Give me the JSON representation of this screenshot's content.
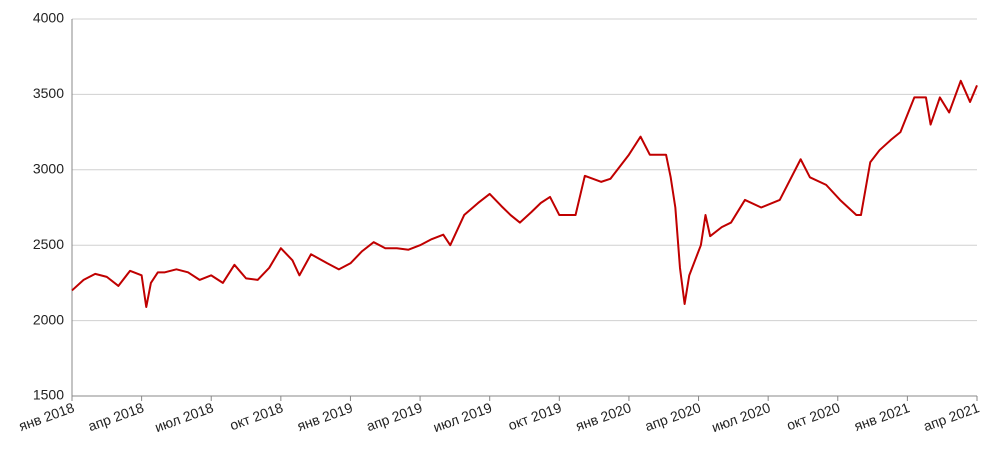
{
  "chart_data": {
    "type": "line",
    "x": [
      0,
      0.5,
      1,
      1.5,
      2,
      2.5,
      3,
      3.2,
      3.4,
      3.7,
      4,
      4.5,
      5,
      5.5,
      6,
      6.5,
      7,
      7.5,
      8,
      8.5,
      9,
      9.5,
      9.8,
      10.3,
      11,
      11.5,
      12,
      12.5,
      13,
      13.5,
      14,
      14.5,
      15,
      15.5,
      16,
      16.3,
      16.9,
      17.5,
      18,
      18.5,
      18.9,
      19.3,
      19.8,
      20.2,
      20.6,
      21,
      21.7,
      22.1,
      22.8,
      23.2,
      24,
      24.5,
      24.9,
      25.6,
      25.8,
      26,
      26.2,
      26.4,
      26.6,
      27.1,
      27.3,
      27.5,
      28,
      28.4,
      29,
      29.7,
      30.5,
      31.4,
      31.8,
      32.5,
      33.1,
      33.8,
      34,
      34.4,
      34.8,
      35.3,
      35.7,
      36.3,
      36.8,
      37,
      37.4,
      37.8,
      38.3,
      38.7,
      39
    ],
    "series": [
      {
        "color": "#c00000",
        "values": [
          2200,
          2270,
          2310,
          2290,
          2230,
          2330,
          2300,
          2090,
          2250,
          2320,
          2320,
          2340,
          2320,
          2270,
          2300,
          2250,
          2370,
          2280,
          2270,
          2350,
          2480,
          2400,
          2300,
          2440,
          2380,
          2340,
          2380,
          2460,
          2520,
          2480,
          2480,
          2470,
          2500,
          2540,
          2570,
          2500,
          2700,
          2780,
          2840,
          2760,
          2700,
          2650,
          2720,
          2780,
          2820,
          2700,
          2700,
          2960,
          2920,
          2940,
          3100,
          3220,
          3100,
          3100,
          2950,
          2750,
          2350,
          2110,
          2300,
          2500,
          2700,
          2560,
          2620,
          2650,
          2800,
          2750,
          2800,
          3070,
          2950,
          2900,
          2800,
          2700,
          2700,
          3050,
          3130,
          3200,
          3250,
          3480,
          3480,
          3300,
          3480,
          3380,
          3590,
          3450,
          3560
        ]
      }
    ],
    "xlim": [
      0,
      39
    ],
    "xticks": [
      {
        "value": 0,
        "label": "янв 2018"
      },
      {
        "value": 3,
        "label": "апр 2018"
      },
      {
        "value": 6,
        "label": "июл 2018"
      },
      {
        "value": 9,
        "label": "окт 2018"
      },
      {
        "value": 12,
        "label": "янв 2019"
      },
      {
        "value": 15,
        "label": "апр 2019"
      },
      {
        "value": 18,
        "label": "июл 2019"
      },
      {
        "value": 21,
        "label": "окт 2019"
      },
      {
        "value": 24,
        "label": "янв 2020"
      },
      {
        "value": 27,
        "label": "апр 2020"
      },
      {
        "value": 30,
        "label": "июл 2020"
      },
      {
        "value": 33,
        "label": "окт 2020"
      },
      {
        "value": 36,
        "label": "янв 2021"
      },
      {
        "value": 39,
        "label": "апр 2021"
      }
    ],
    "ylim": [
      1500,
      4000
    ],
    "yticks": [
      1500,
      2000,
      2500,
      3000,
      3500,
      4000
    ],
    "grid": true
  }
}
